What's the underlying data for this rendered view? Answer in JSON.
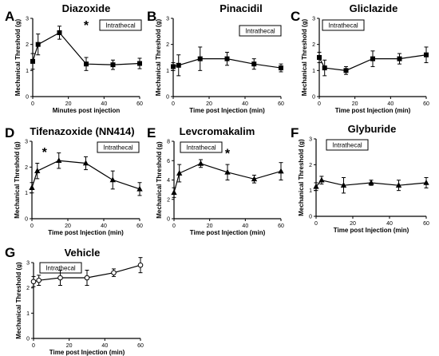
{
  "chart_data": [
    {
      "type": "line",
      "letter": "A",
      "title": "Diazoxide",
      "xlabel": "Minutes post injection",
      "ylabel": "Mechanical Threshold (g)",
      "xlim": [
        0,
        60
      ],
      "ylim": [
        0,
        3
      ],
      "xticks": [
        0,
        20,
        40,
        60
      ],
      "yticks": [
        0,
        1,
        2,
        3
      ],
      "annotation": "Intrathecal",
      "marker": "square",
      "marker_fill": "#000000",
      "significance": [
        {
          "x": 30,
          "y": 2.75,
          "label": "*"
        }
      ],
      "series": [
        {
          "x": [
            0,
            3,
            15,
            30,
            45,
            60
          ],
          "y": [
            1.35,
            2.0,
            2.45,
            1.25,
            1.22,
            1.27
          ],
          "err": [
            0.3,
            0.4,
            0.25,
            0.25,
            0.18,
            0.2
          ]
        }
      ]
    },
    {
      "type": "line",
      "letter": "B",
      "title": "Pinacidil",
      "xlabel": "Time post Injection (min)",
      "ylabel": "Mechanical Threshold (g)",
      "xlim": [
        0,
        60
      ],
      "ylim": [
        0,
        3
      ],
      "xticks": [
        0,
        20,
        40,
        60
      ],
      "yticks": [
        0,
        1,
        2,
        3
      ],
      "annotation": "Intrathecal",
      "marker": "square",
      "marker_fill": "#000000",
      "significance": [],
      "series": [
        {
          "x": [
            0,
            3,
            15,
            30,
            45,
            60
          ],
          "y": [
            1.15,
            1.2,
            1.45,
            1.45,
            1.25,
            1.1
          ],
          "err": [
            0.15,
            0.4,
            0.45,
            0.25,
            0.2,
            0.15
          ]
        }
      ]
    },
    {
      "type": "line",
      "letter": "C",
      "title": "Gliclazide",
      "xlabel": "Time post Injection (min)",
      "ylabel": "Mechanical Threshold (g)",
      "xlim": [
        0,
        60
      ],
      "ylim": [
        0,
        3
      ],
      "xticks": [
        0,
        20,
        40,
        60
      ],
      "yticks": [
        0,
        1,
        2,
        3
      ],
      "annotation": "Intrathecal",
      "marker": "square",
      "marker_fill": "#000000",
      "significance": [],
      "series": [
        {
          "x": [
            0,
            3,
            15,
            30,
            45,
            60
          ],
          "y": [
            1.5,
            1.1,
            1.0,
            1.45,
            1.45,
            1.6
          ],
          "err": [
            0.2,
            0.3,
            0.15,
            0.3,
            0.2,
            0.3
          ]
        }
      ]
    },
    {
      "type": "line",
      "letter": "D",
      "title": "Tifenazoxide (NN414)",
      "xlabel": "Time post Injection (min)",
      "ylabel": "Mechanical Threshold (g)",
      "xlim": [
        0,
        60
      ],
      "ylim": [
        0,
        3
      ],
      "xticks": [
        0,
        20,
        40,
        60
      ],
      "yticks": [
        0,
        1,
        2,
        3
      ],
      "annotation": "Intrathecal",
      "marker": "triangle",
      "marker_fill": "#000000",
      "significance": [
        {
          "x": 7,
          "y": 2.6,
          "label": "*"
        }
      ],
      "series": [
        {
          "x": [
            0,
            3,
            15,
            30,
            45,
            60
          ],
          "y": [
            1.2,
            1.85,
            2.25,
            2.15,
            1.5,
            1.15
          ],
          "err": [
            0.2,
            0.3,
            0.3,
            0.25,
            0.35,
            0.25
          ]
        }
      ]
    },
    {
      "type": "line",
      "letter": "E",
      "title": "Levcromakalim",
      "xlabel": "Time post Injection (min)",
      "ylabel": "Mechanical Threshold (g)",
      "xlim": [
        0,
        60
      ],
      "ylim": [
        0,
        8
      ],
      "xticks": [
        0,
        20,
        40,
        60
      ],
      "yticks": [
        0,
        2,
        4,
        6,
        8
      ],
      "annotation": "Intrathecal",
      "marker": "triangle",
      "marker_fill": "#000000",
      "significance": [
        {
          "x": 30,
          "y": 6.8,
          "label": "*"
        }
      ],
      "series": [
        {
          "x": [
            0,
            3,
            15,
            30,
            45,
            60
          ],
          "y": [
            2.7,
            4.7,
            5.7,
            4.8,
            4.1,
            4.9
          ],
          "err": [
            0.5,
            0.9,
            0.4,
            0.8,
            0.4,
            0.9
          ]
        }
      ]
    },
    {
      "type": "line",
      "letter": "F",
      "title": "Glyburide",
      "xlabel": "Time post Injection (min)",
      "ylabel": "Mechanical Threshold (g)",
      "xlim": [
        0,
        60
      ],
      "ylim": [
        0,
        3
      ],
      "xticks": [
        0,
        20,
        40,
        60
      ],
      "yticks": [
        0,
        1,
        2,
        3
      ],
      "annotation": "Intrathecal",
      "marker": "triangle",
      "marker_fill": "#000000",
      "significance": [],
      "series": [
        {
          "x": [
            0,
            3,
            15,
            30,
            45,
            60
          ],
          "y": [
            1.15,
            1.4,
            1.2,
            1.3,
            1.2,
            1.3
          ],
          "err": [
            0.15,
            0.15,
            0.3,
            0.1,
            0.2,
            0.2
          ]
        }
      ]
    },
    {
      "type": "line",
      "letter": "G",
      "title": "Vehicle",
      "xlabel": "Time post Injection (min)",
      "ylabel": "Mechanical Threshold (g)",
      "xlim": [
        0,
        60
      ],
      "ylim": [
        0,
        3
      ],
      "xticks": [
        0,
        20,
        40,
        60
      ],
      "yticks": [
        0,
        1,
        2,
        3
      ],
      "annotation": "Intrathecal",
      "marker": "circle",
      "marker_fill": "#ffffff",
      "significance": [],
      "series": [
        {
          "x": [
            0,
            3,
            15,
            30,
            45,
            60
          ],
          "y": [
            2.25,
            2.3,
            2.4,
            2.4,
            2.6,
            2.9
          ],
          "err": [
            0.2,
            0.2,
            0.3,
            0.3,
            0.15,
            0.3
          ]
        }
      ]
    }
  ]
}
